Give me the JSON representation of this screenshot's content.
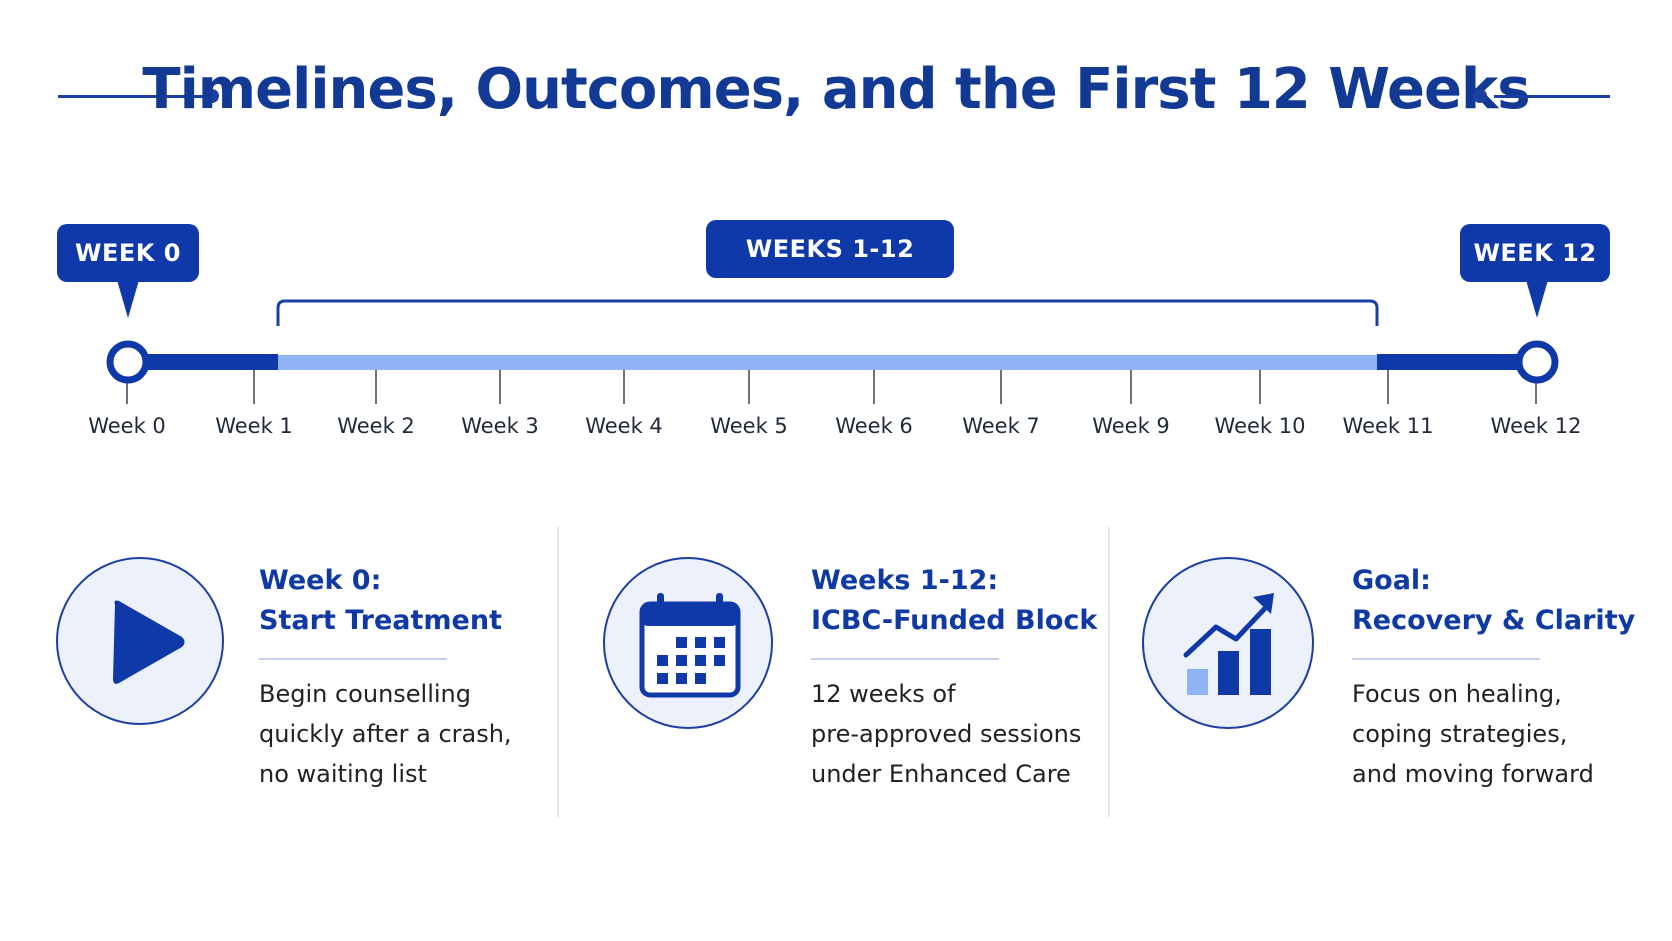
{
  "title": "Timelines, Outcomes, and the First 12 Weeks",
  "badges": {
    "week0": "WEEK 0",
    "weeks_block": "WEEKS 1-12",
    "week12": "WEEK 12"
  },
  "timeline": {
    "labels": [
      "Week 0",
      "Week 1",
      "Week 2",
      "Week 3",
      "Week 4",
      "Week 5",
      "Week 6",
      "Week 7",
      "Week 9",
      "Week 10",
      "Week 11",
      "Week 12"
    ]
  },
  "cards": [
    {
      "icon": "play-icon",
      "title_line1": "Week 0:",
      "title_line2": "Start Treatment",
      "desc": [
        "Begin counselling",
        "quickly after a crash,",
        "no waiting list"
      ]
    },
    {
      "icon": "calendar-icon",
      "title_line1": "Weeks 1-12:",
      "title_line2": "ICBC-Funded Block",
      "desc": [
        "12 weeks of",
        "pre-approved sessions",
        "under Enhanced Care"
      ]
    },
    {
      "icon": "growth-chart-icon",
      "title_line1": "Goal:",
      "title_line2": "Recovery & Clarity",
      "desc": [
        "Focus on healing,",
        "coping strategies,",
        "and moving forward"
      ]
    }
  ],
  "colors": {
    "primary": "#0f39a8",
    "light_bar": "#8fb3f5",
    "icon_bg": "#edf1fb"
  }
}
